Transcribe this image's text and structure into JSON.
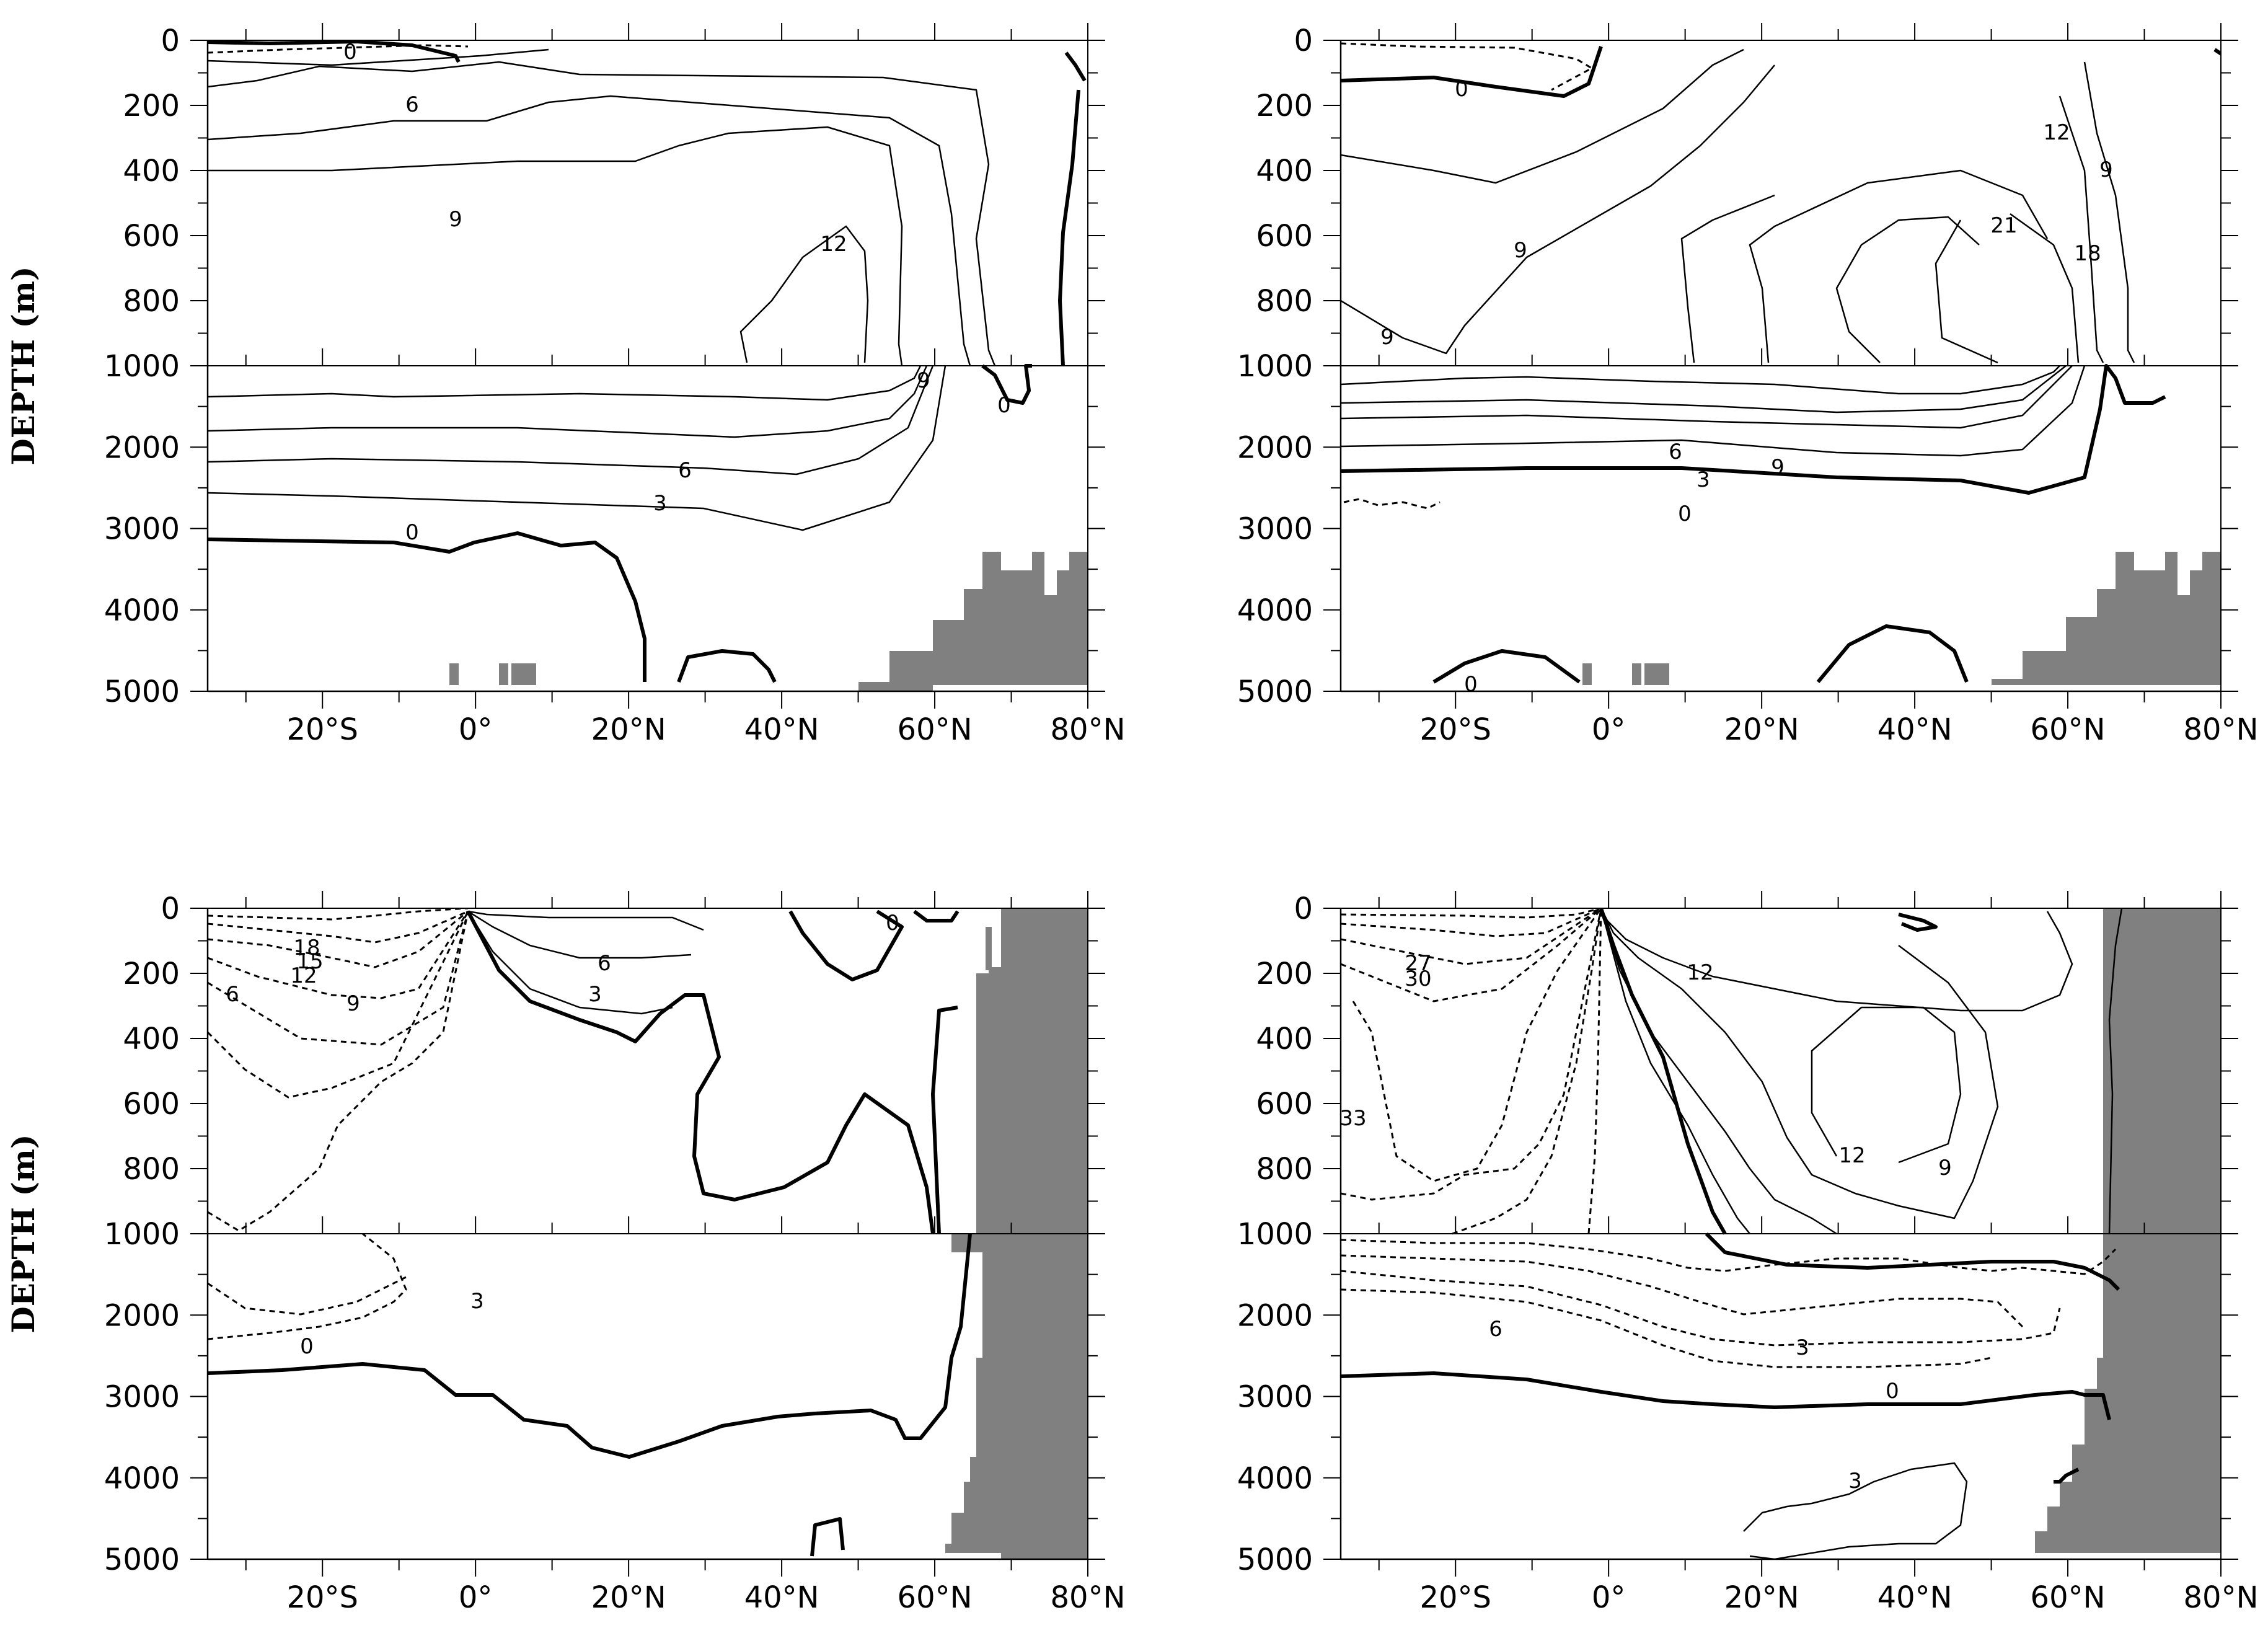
{
  "chart_data": [
    {
      "type": "contour",
      "panel": "top-left",
      "xlabel": "",
      "ylabel": "DEPTH (m)",
      "x_range_deg": [
        -35,
        80
      ],
      "x_ticks": [
        "20°S",
        "0°",
        "20°N",
        "40°N",
        "60°N",
        "80°N"
      ],
      "y_ticks_upper": [
        "0",
        "200",
        "400",
        "600",
        "800",
        "1000"
      ],
      "y_ticks_lower": [
        "2000",
        "3000",
        "4000",
        "5000"
      ],
      "y_ranges_m": [
        [
          0,
          1000
        ],
        [
          1000,
          5000
        ]
      ],
      "contour_labels": [
        "0",
        "6",
        "9",
        "12",
        "9",
        "6",
        "3",
        "0",
        "0"
      ],
      "contour_interval": 3,
      "topography": "shaded"
    },
    {
      "type": "contour",
      "panel": "top-right",
      "xlabel": "",
      "ylabel": "",
      "x_range_deg": [
        -35,
        80
      ],
      "x_ticks": [
        "20°S",
        "0°",
        "20°N",
        "40°N",
        "60°N",
        "80°N"
      ],
      "y_ticks_upper": [
        "0",
        "200",
        "400",
        "600",
        "800",
        "1000"
      ],
      "y_ticks_lower": [
        "2000",
        "3000",
        "4000",
        "5000"
      ],
      "y_ranges_m": [
        [
          0,
          1000
        ],
        [
          1000,
          5000
        ]
      ],
      "contour_labels": [
        "0",
        "12",
        "9",
        "9",
        "21",
        "18",
        "9",
        "6",
        "9",
        "3",
        "0",
        "0"
      ],
      "contour_interval": 3,
      "topography": "shaded"
    },
    {
      "type": "contour",
      "panel": "bottom-left",
      "xlabel": "",
      "ylabel": "DEPTH (m)",
      "x_range_deg": [
        -35,
        80
      ],
      "x_ticks": [
        "20°S",
        "0°",
        "20°N",
        "40°N",
        "60°N",
        "80°N"
      ],
      "y_ticks_upper": [
        "0",
        "200",
        "400",
        "600",
        "800",
        "1000"
      ],
      "y_ticks_lower": [
        "2000",
        "3000",
        "4000",
        "5000"
      ],
      "y_ranges_m": [
        [
          0,
          1000
        ],
        [
          1000,
          5000
        ]
      ],
      "contour_labels": [
        "18",
        "15",
        "12",
        "9",
        "6",
        "6",
        "3",
        "0",
        "3",
        "0"
      ],
      "contour_interval": 3,
      "negative_contours": "dashed",
      "topography": "shaded"
    },
    {
      "type": "contour",
      "panel": "bottom-right",
      "xlabel": "",
      "ylabel": "",
      "x_range_deg": [
        -35,
        80
      ],
      "x_ticks": [
        "20°S",
        "0°",
        "20°N",
        "40°N",
        "60°N",
        "80°N"
      ],
      "y_ticks_upper": [
        "0",
        "200",
        "400",
        "600",
        "800",
        "1000"
      ],
      "y_ticks_lower": [
        "2000",
        "3000",
        "4000",
        "5000"
      ],
      "y_ranges_m": [
        [
          0,
          1000
        ],
        [
          1000,
          5000
        ]
      ],
      "contour_labels": [
        "27",
        "30",
        "33",
        "12",
        "12",
        "9",
        "6",
        "3",
        "0",
        "3"
      ],
      "contour_interval": 3,
      "negative_contours": "dashed",
      "topography": "shaded"
    }
  ]
}
